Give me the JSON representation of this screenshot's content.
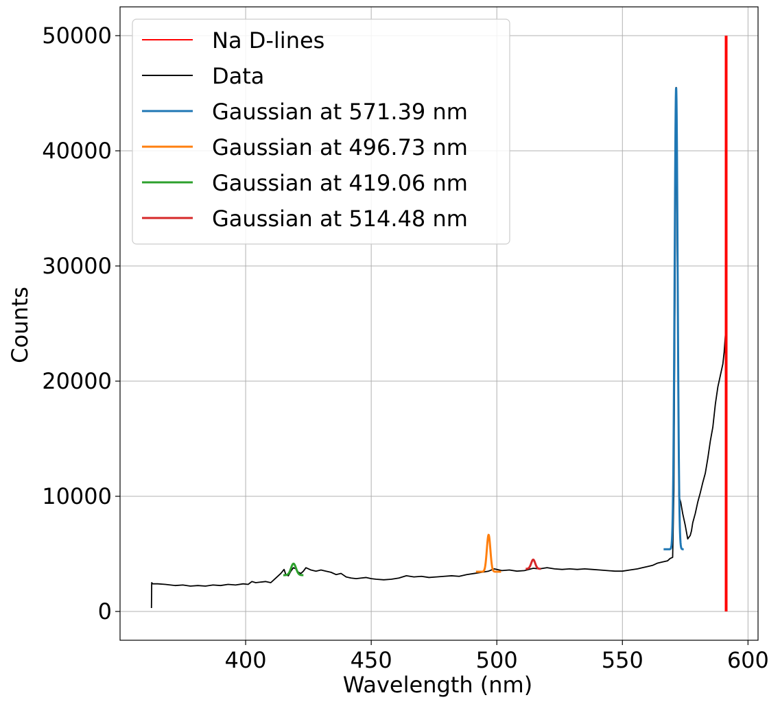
{
  "chart_data": {
    "type": "line",
    "title": "",
    "xlabel": "Wavelength (nm)",
    "ylabel": "Counts",
    "xlim": [
      350,
      604
    ],
    "ylim": [
      -2500,
      52500
    ],
    "xticks": [
      "400",
      "450",
      "500",
      "550",
      "600"
    ],
    "xtick_values": [
      400,
      450,
      500,
      550,
      600
    ],
    "yticks": [
      "0",
      "10000",
      "20000",
      "30000",
      "40000",
      "50000"
    ],
    "ytick_values": [
      0,
      10000,
      20000,
      30000,
      40000,
      50000
    ],
    "grid": true,
    "legend_placement": "top-left",
    "series": [
      {
        "name": "Na D-lines",
        "kind": "vline",
        "color": "#ff0000",
        "x": 591.3,
        "y_range": [
          0,
          50000
        ]
      },
      {
        "name": "Data",
        "color": "#000000",
        "x": [
          362.5,
          362.6,
          363,
          365,
          368,
          372,
          375,
          378,
          381,
          384,
          387,
          390,
          393,
          396,
          399,
          401,
          402.5,
          404,
          406,
          408,
          410,
          412,
          414,
          415.3,
          416,
          417,
          418,
          419,
          420,
          421,
          422,
          423,
          424,
          425,
          426,
          428,
          430,
          432,
          434,
          436,
          438,
          440,
          442,
          444,
          446,
          448,
          450,
          452,
          455,
          458,
          461,
          464,
          467,
          470,
          473,
          476,
          479,
          482,
          485,
          488,
          491,
          494,
          496.7,
          499,
          502,
          505,
          508,
          511,
          514.5,
          517,
          520,
          523,
          526,
          529,
          532,
          535,
          538,
          541,
          544,
          547,
          550,
          553,
          556,
          558,
          560,
          562,
          564,
          566,
          568,
          569,
          570,
          570.5,
          571.4,
          572.5,
          573.2,
          574,
          575,
          576,
          577,
          577.5,
          578,
          579,
          580,
          581,
          582,
          583,
          584,
          585,
          586,
          587,
          588,
          589,
          589.5,
          590,
          590.5,
          591
        ],
        "y": [
          300,
          2500,
          2400,
          2400,
          2350,
          2250,
          2300,
          2200,
          2250,
          2200,
          2300,
          2250,
          2350,
          2300,
          2400,
          2350,
          2600,
          2500,
          2550,
          2600,
          2500,
          2900,
          3300,
          3650,
          3200,
          3100,
          3500,
          3800,
          3700,
          3400,
          3300,
          3500,
          3800,
          3700,
          3600,
          3500,
          3600,
          3500,
          3400,
          3200,
          3300,
          3000,
          2900,
          2850,
          2900,
          2950,
          2850,
          2800,
          2750,
          2800,
          2900,
          3100,
          3000,
          3050,
          2950,
          3000,
          3050,
          3100,
          3050,
          3200,
          3300,
          3400,
          3500,
          3700,
          3550,
          3600,
          3500,
          3550,
          3750,
          3700,
          3800,
          3700,
          3650,
          3700,
          3650,
          3700,
          3650,
          3600,
          3550,
          3500,
          3500,
          3600,
          3700,
          3800,
          3900,
          4000,
          4200,
          4300,
          4400,
          4600,
          4700,
          10500,
          45500,
          10000,
          9500,
          8500,
          7500,
          6300,
          6600,
          7000,
          7700,
          8500,
          9500,
          10300,
          11200,
          12000,
          13300,
          14800,
          16000,
          18000,
          19500,
          20500,
          21000,
          21500,
          22500,
          24000
        ]
      },
      {
        "name": "Gaussian at 571.39 nm",
        "kind": "gaussian",
        "color": "#1f77b4",
        "center": 571.39,
        "amplitude": 40100,
        "sigma": 0.6,
        "baseline": 5400,
        "x_range": [
          566.4,
          574.4
        ]
      },
      {
        "name": "Gaussian at 496.73 nm",
        "kind": "gaussian",
        "color": "#ff7f0e",
        "center": 496.73,
        "amplitude": 3200,
        "sigma": 0.7,
        "baseline": 3450,
        "x_range": [
          491.7,
          501.7
        ]
      },
      {
        "name": "Gaussian at 419.06 nm",
        "kind": "gaussian",
        "color": "#2ca02c",
        "center": 419.06,
        "amplitude": 1000,
        "sigma": 1.0,
        "baseline": 3150,
        "x_range": [
          415.0,
          423.0
        ]
      },
      {
        "name": "Gaussian at 514.48 nm",
        "kind": "gaussian",
        "color": "#d62728",
        "center": 514.48,
        "amplitude": 800,
        "sigma": 0.8,
        "baseline": 3700,
        "x_range": [
          511.5,
          517.5
        ]
      }
    ]
  }
}
